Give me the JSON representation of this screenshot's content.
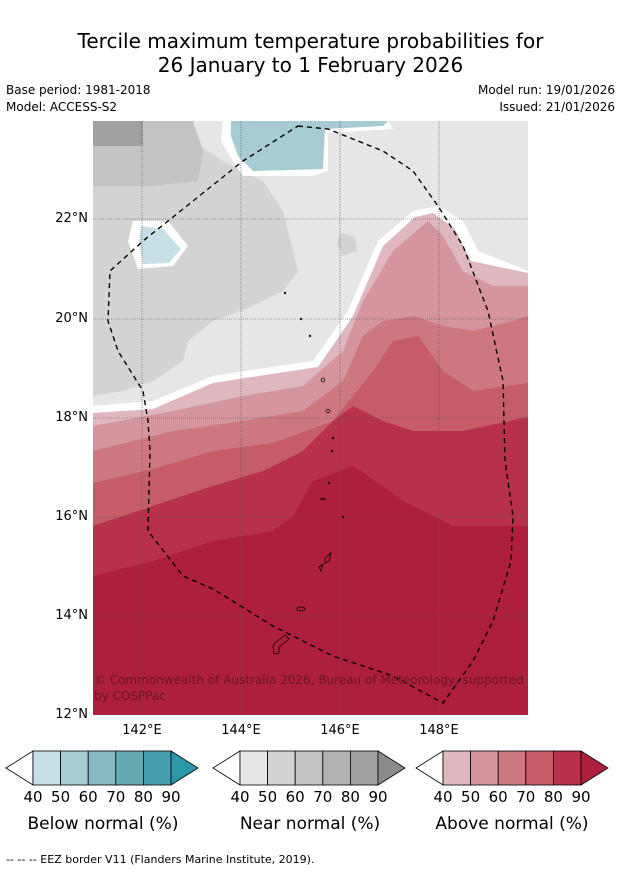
{
  "title": {
    "line1": "Tercile maximum temperature probabilities for",
    "line2": "26 January to 1 February 2026"
  },
  "meta": {
    "base_period": "Base period: 1981-2018",
    "model": "Model: ACCESS-S2",
    "model_run": "Model run: 19/01/2026",
    "issued": "Issued: 21/01/2026"
  },
  "map": {
    "lat_labels": [
      "22°N",
      "20°N",
      "18°N",
      "16°N",
      "14°N",
      "12°N"
    ],
    "lon_labels": [
      "142°E",
      "144°E",
      "146°E",
      "148°E"
    ],
    "copyright_line1": "© Commonwealth of Australia 2026, Bureau of Meteorology, supported",
    "copyright_line2": "by COSPPac"
  },
  "colorbars": [
    {
      "title": "Below normal (%)",
      "ticks": [
        "40",
        "50",
        "60",
        "70",
        "80",
        "90"
      ],
      "colors": [
        "#c7e0e5",
        "#a6cbd2",
        "#86b9c2",
        "#66a8b4",
        "#48a0ae",
        "#2a98a8"
      ]
    },
    {
      "title": "Near normal (%)",
      "ticks": [
        "40",
        "50",
        "60",
        "70",
        "80",
        "90"
      ],
      "colors": [
        "#e6e6e6",
        "#d3d3d3",
        "#c3c3c3",
        "#b2b2b2",
        "#a1a1a1",
        "#8a8a8a"
      ]
    },
    {
      "title": "Above normal (%)",
      "ticks": [
        "40",
        "50",
        "60",
        "70",
        "80",
        "90"
      ],
      "colors": [
        "#dfb7bf",
        "#d5959e",
        "#cd7880",
        "#c55c67",
        "#b7314a",
        "#ae1f3e"
      ]
    }
  ],
  "footer": "--  --  -- EEZ border V11 (Flanders Marine Institute, 2019)."
}
